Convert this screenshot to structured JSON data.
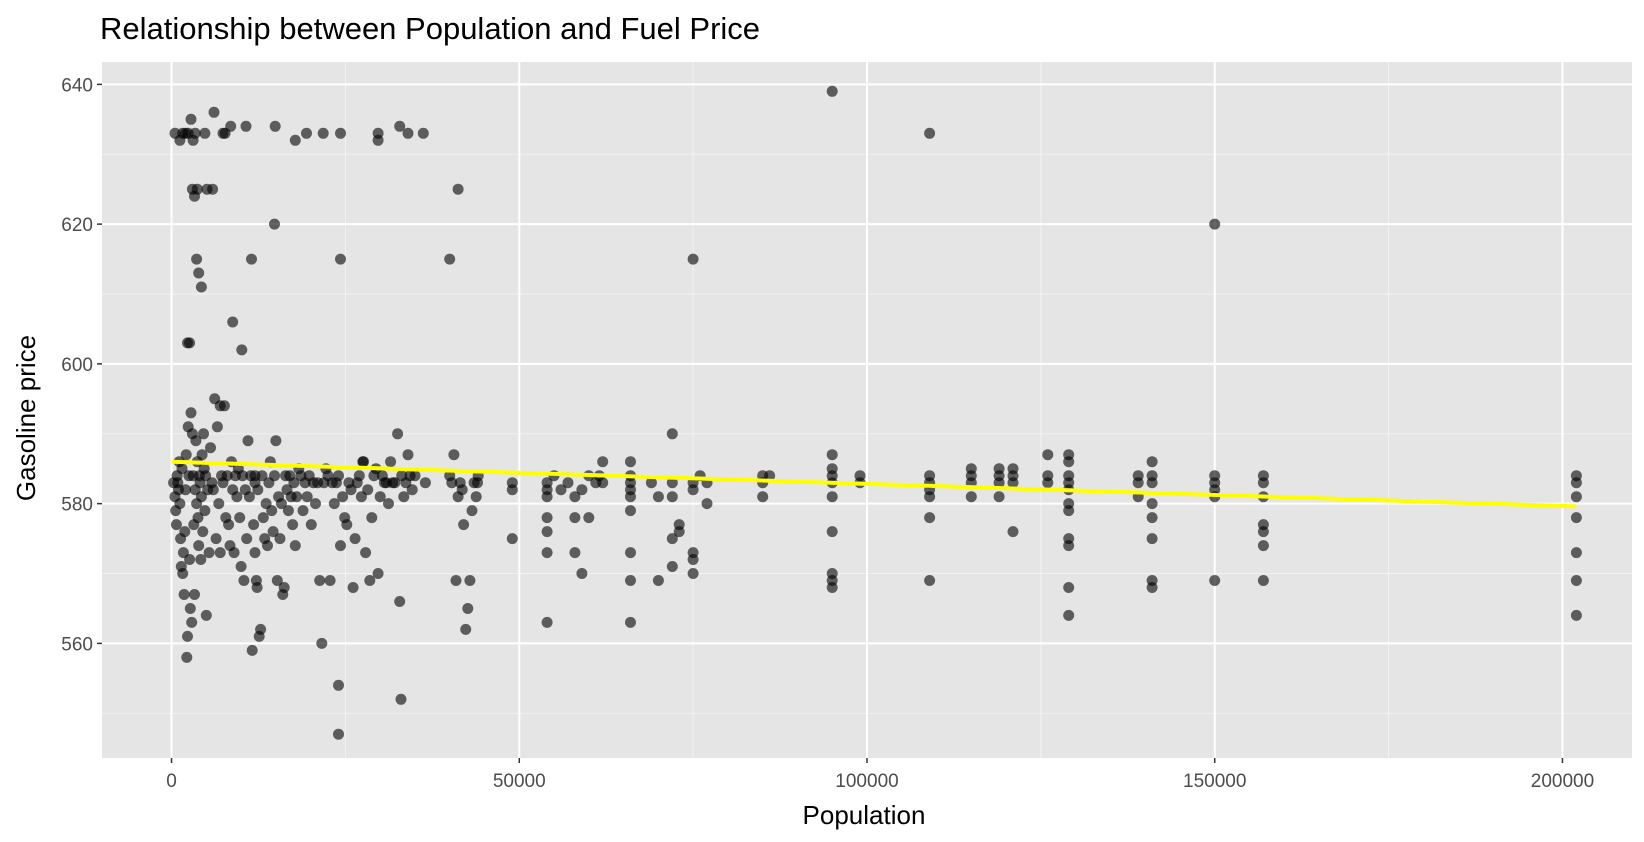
{
  "chart_data": {
    "type": "scatter",
    "title": "Relationship between Population and Fuel Price",
    "xlabel": "Population",
    "ylabel": "Gasoline price",
    "xlim": [
      -10000,
      210000
    ],
    "ylim": [
      543.6,
      643.2
    ],
    "x_ticks": [
      0,
      50000,
      100000,
      150000,
      200000
    ],
    "x_tick_labels": [
      "0",
      "50000",
      "100000",
      "150000",
      "200000"
    ],
    "y_ticks": [
      560,
      580,
      600,
      620,
      640
    ],
    "y_tick_labels": [
      "560",
      "580",
      "600",
      "620",
      "640"
    ],
    "grid": true,
    "legend": "none",
    "colors": {
      "panel_background": "#e5e5e5",
      "grid_major": "#ffffff",
      "grid_minor": "#f2f2f2",
      "points": "#000000",
      "trend_line": "#ffff00"
    },
    "point_opacity": 0.6,
    "trend_line": {
      "x": [
        0,
        202000
      ],
      "y": [
        586.0,
        579.6
      ]
    },
    "points": [
      [
        300,
        583
      ],
      [
        500,
        581
      ],
      [
        600,
        579
      ],
      [
        700,
        577
      ],
      [
        800,
        584
      ],
      [
        900,
        583
      ],
      [
        1000,
        582
      ],
      [
        1100,
        586
      ],
      [
        1200,
        580
      ],
      [
        1300,
        575
      ],
      [
        1400,
        571
      ],
      [
        1500,
        585
      ],
      [
        1600,
        570
      ],
      [
        1700,
        573
      ],
      [
        1800,
        567
      ],
      [
        1900,
        576
      ],
      [
        2000,
        582
      ],
      [
        2100,
        587
      ],
      [
        2200,
        558
      ],
      [
        2300,
        561
      ],
      [
        2400,
        591
      ],
      [
        2500,
        584
      ],
      [
        2600,
        572
      ],
      [
        2700,
        565
      ],
      [
        2800,
        593
      ],
      [
        2900,
        563
      ],
      [
        3000,
        590
      ],
      [
        3100,
        584
      ],
      [
        3200,
        577
      ],
      [
        3300,
        567
      ],
      [
        3400,
        582
      ],
      [
        3500,
        589
      ],
      [
        3600,
        580
      ],
      [
        3700,
        586
      ],
      [
        3800,
        578
      ],
      [
        3900,
        574
      ],
      [
        4000,
        584
      ],
      [
        4100,
        583
      ],
      [
        4200,
        572
      ],
      [
        4300,
        581
      ],
      [
        4400,
        587
      ],
      [
        4500,
        576
      ],
      [
        4600,
        590
      ],
      [
        4700,
        585
      ],
      [
        4800,
        579
      ],
      [
        4900,
        584
      ],
      [
        5000,
        564
      ],
      [
        5200,
        582
      ],
      [
        5400,
        573
      ],
      [
        5600,
        588
      ],
      [
        5800,
        583
      ],
      [
        6000,
        582
      ],
      [
        6200,
        595
      ],
      [
        6400,
        575
      ],
      [
        6600,
        591
      ],
      [
        6800,
        580
      ],
      [
        7000,
        573
      ],
      [
        7200,
        584
      ],
      [
        7400,
        583
      ],
      [
        7600,
        594
      ],
      [
        7800,
        578
      ],
      [
        8000,
        584
      ],
      [
        8200,
        577
      ],
      [
        8400,
        574
      ],
      [
        8600,
        586
      ],
      [
        8800,
        582
      ],
      [
        9000,
        573
      ],
      [
        9200,
        584
      ],
      [
        9400,
        581
      ],
      [
        9600,
        585
      ],
      [
        9800,
        578
      ],
      [
        10000,
        571
      ],
      [
        10200,
        584
      ],
      [
        10400,
        569
      ],
      [
        10600,
        582
      ],
      [
        10800,
        575
      ],
      [
        11000,
        589
      ],
      [
        11200,
        581
      ],
      [
        11400,
        584
      ],
      [
        11600,
        559
      ],
      [
        11800,
        577
      ],
      [
        12000,
        573
      ],
      [
        12200,
        569
      ],
      [
        12400,
        582
      ],
      [
        12600,
        561
      ],
      [
        12800,
        562
      ],
      [
        13000,
        584
      ],
      [
        13200,
        578
      ],
      [
        13400,
        575
      ],
      [
        13600,
        580
      ],
      [
        13800,
        574
      ],
      [
        14000,
        583
      ],
      [
        14200,
        586
      ],
      [
        14400,
        579
      ],
      [
        14600,
        576
      ],
      [
        14800,
        584
      ],
      [
        15000,
        589
      ],
      [
        15200,
        569
      ],
      [
        15400,
        581
      ],
      [
        15600,
        575
      ],
      [
        15800,
        580
      ],
      [
        16000,
        567
      ],
      [
        16200,
        568
      ],
      [
        16400,
        584
      ],
      [
        16600,
        582
      ],
      [
        16800,
        579
      ],
      [
        17000,
        584
      ],
      [
        17200,
        581
      ],
      [
        17400,
        577
      ],
      [
        17600,
        583
      ],
      [
        17800,
        574
      ],
      [
        18000,
        581
      ],
      [
        18300,
        585
      ],
      [
        18600,
        584
      ],
      [
        18900,
        579
      ],
      [
        19200,
        583
      ],
      [
        19500,
        581
      ],
      [
        19800,
        584
      ],
      [
        20100,
        577
      ],
      [
        20400,
        583
      ],
      [
        20700,
        580
      ],
      [
        21000,
        583
      ],
      [
        21300,
        569
      ],
      [
        21600,
        560
      ],
      [
        21900,
        583
      ],
      [
        22200,
        585
      ],
      [
        22500,
        584
      ],
      [
        22800,
        569
      ],
      [
        23100,
        583
      ],
      [
        23400,
        580
      ],
      [
        23700,
        583
      ],
      [
        24000,
        584
      ],
      [
        24300,
        574
      ],
      [
        24600,
        581
      ],
      [
        24900,
        578
      ],
      [
        25200,
        577
      ],
      [
        25500,
        583
      ],
      [
        25800,
        582
      ],
      [
        26100,
        568
      ],
      [
        26400,
        575
      ],
      [
        26700,
        583
      ],
      [
        27000,
        584
      ],
      [
        27300,
        581
      ],
      [
        27600,
        586
      ],
      [
        27900,
        573
      ],
      [
        28200,
        582
      ],
      [
        28500,
        569
      ],
      [
        28800,
        578
      ],
      [
        29100,
        584
      ],
      [
        29400,
        585
      ],
      [
        29700,
        570
      ],
      [
        30000,
        581
      ],
      [
        30300,
        584
      ],
      [
        30600,
        583
      ],
      [
        30900,
        583
      ],
      [
        31200,
        580
      ],
      [
        31500,
        586
      ],
      [
        31800,
        583
      ],
      [
        32100,
        583
      ],
      [
        32500,
        590
      ],
      [
        32800,
        566
      ],
      [
        33100,
        584
      ],
      [
        33400,
        581
      ],
      [
        33700,
        583
      ],
      [
        34000,
        587
      ],
      [
        34300,
        584
      ],
      [
        34600,
        582
      ],
      [
        35000,
        584
      ],
      [
        36500,
        583
      ],
      [
        40000,
        584
      ],
      [
        40300,
        583
      ],
      [
        40600,
        587
      ],
      [
        40900,
        569
      ],
      [
        41200,
        581
      ],
      [
        41500,
        583
      ],
      [
        41800,
        582
      ],
      [
        42000,
        577
      ],
      [
        42300,
        562
      ],
      [
        42600,
        565
      ],
      [
        42900,
        569
      ],
      [
        43200,
        579
      ],
      [
        43500,
        583
      ],
      [
        43800,
        581
      ],
      [
        44100,
        584
      ],
      [
        44000,
        583
      ],
      [
        49000,
        583
      ],
      [
        49000,
        582
      ],
      [
        49000,
        575
      ],
      [
        54000,
        583
      ],
      [
        54000,
        582
      ],
      [
        54000,
        581
      ],
      [
        54000,
        578
      ],
      [
        54000,
        576
      ],
      [
        54000,
        573
      ],
      [
        54000,
        563
      ],
      [
        55000,
        584
      ],
      [
        56000,
        582
      ],
      [
        57000,
        583
      ],
      [
        58000,
        581
      ],
      [
        59000,
        582
      ],
      [
        60000,
        584
      ],
      [
        61000,
        583
      ],
      [
        61500,
        584
      ],
      [
        62000,
        586
      ],
      [
        62000,
        583
      ],
      [
        58000,
        573
      ],
      [
        58000,
        578
      ],
      [
        59000,
        570
      ],
      [
        60000,
        578
      ],
      [
        66000,
        583
      ],
      [
        66000,
        584
      ],
      [
        66000,
        586
      ],
      [
        66000,
        582
      ],
      [
        66000,
        581
      ],
      [
        66000,
        579
      ],
      [
        66000,
        573
      ],
      [
        66000,
        569
      ],
      [
        66000,
        563
      ],
      [
        69000,
        583
      ],
      [
        70000,
        581
      ],
      [
        70000,
        569
      ],
      [
        72000,
        590
      ],
      [
        72000,
        583
      ],
      [
        72000,
        581
      ],
      [
        72000,
        575
      ],
      [
        72000,
        571
      ],
      [
        73000,
        577
      ],
      [
        73000,
        576
      ],
      [
        75000,
        583
      ],
      [
        75000,
        582
      ],
      [
        75000,
        573
      ],
      [
        75000,
        572
      ],
      [
        75000,
        570
      ],
      [
        76000,
        584
      ],
      [
        77000,
        583
      ],
      [
        77000,
        580
      ],
      [
        85000,
        584
      ],
      [
        85000,
        583
      ],
      [
        85000,
        581
      ],
      [
        86000,
        584
      ],
      [
        95000,
        587
      ],
      [
        95000,
        585
      ],
      [
        95000,
        584
      ],
      [
        95000,
        583
      ],
      [
        95000,
        581
      ],
      [
        95000,
        576
      ],
      [
        95000,
        570
      ],
      [
        95000,
        569
      ],
      [
        95000,
        568
      ],
      [
        99000,
        584
      ],
      [
        99000,
        583
      ],
      [
        109000,
        584
      ],
      [
        109000,
        583
      ],
      [
        109000,
        582
      ],
      [
        109000,
        581
      ],
      [
        109000,
        578
      ],
      [
        109000,
        569
      ],
      [
        115000,
        585
      ],
      [
        115000,
        584
      ],
      [
        115000,
        583
      ],
      [
        115000,
        581
      ],
      [
        119000,
        585
      ],
      [
        119000,
        584
      ],
      [
        119000,
        583
      ],
      [
        119000,
        581
      ],
      [
        121000,
        585
      ],
      [
        121000,
        584
      ],
      [
        121000,
        583
      ],
      [
        121000,
        576
      ],
      [
        126000,
        587
      ],
      [
        126000,
        584
      ],
      [
        126000,
        583
      ],
      [
        129000,
        587
      ],
      [
        129000,
        586
      ],
      [
        129000,
        584
      ],
      [
        129000,
        583
      ],
      [
        129000,
        582
      ],
      [
        129000,
        580
      ],
      [
        129000,
        579
      ],
      [
        129000,
        575
      ],
      [
        129000,
        574
      ],
      [
        129000,
        568
      ],
      [
        129000,
        564
      ],
      [
        139000,
        584
      ],
      [
        139000,
        583
      ],
      [
        139000,
        581
      ],
      [
        141000,
        586
      ],
      [
        141000,
        584
      ],
      [
        141000,
        583
      ],
      [
        141000,
        580
      ],
      [
        141000,
        578
      ],
      [
        141000,
        575
      ],
      [
        141000,
        569
      ],
      [
        141000,
        568
      ],
      [
        150000,
        584
      ],
      [
        150000,
        583
      ],
      [
        150000,
        582
      ],
      [
        150000,
        581
      ],
      [
        150000,
        569
      ],
      [
        157000,
        584
      ],
      [
        157000,
        583
      ],
      [
        157000,
        581
      ],
      [
        157000,
        577
      ],
      [
        157000,
        576
      ],
      [
        157000,
        574
      ],
      [
        157000,
        569
      ],
      [
        202000,
        584
      ],
      [
        202000,
        583
      ],
      [
        202000,
        581
      ],
      [
        202000,
        578
      ],
      [
        202000,
        573
      ],
      [
        202000,
        569
      ],
      [
        202000,
        564
      ],
      [
        500,
        633
      ],
      [
        1200,
        632
      ],
      [
        1600,
        633
      ],
      [
        2000,
        633
      ],
      [
        2400,
        633
      ],
      [
        2800,
        635
      ],
      [
        3000,
        625
      ],
      [
        3100,
        632
      ],
      [
        3300,
        624
      ],
      [
        3400,
        633
      ],
      [
        3600,
        615
      ],
      [
        3700,
        625
      ],
      [
        3900,
        613
      ],
      [
        4300,
        611
      ],
      [
        4800,
        633
      ],
      [
        5100,
        625
      ],
      [
        5900,
        625
      ],
      [
        6100,
        636
      ],
      [
        7400,
        633
      ],
      [
        7700,
        633
      ],
      [
        8500,
        634
      ],
      [
        8800,
        606
      ],
      [
        10100,
        602
      ],
      [
        10700,
        634
      ],
      [
        11500,
        615
      ],
      [
        14800,
        620
      ],
      [
        14900,
        634
      ],
      [
        17800,
        632
      ],
      [
        19400,
        633
      ],
      [
        21800,
        633
      ],
      [
        24300,
        615
      ],
      [
        24300,
        633
      ],
      [
        29700,
        633
      ],
      [
        29700,
        632
      ],
      [
        32800,
        634
      ],
      [
        34000,
        633
      ],
      [
        36200,
        633
      ],
      [
        40000,
        615
      ],
      [
        41200,
        625
      ],
      [
        75000,
        615
      ],
      [
        95000,
        639
      ],
      [
        109000,
        633
      ],
      [
        150000,
        620
      ],
      [
        2300,
        603
      ],
      [
        2600,
        603
      ],
      [
        7000,
        594
      ],
      [
        24000,
        554
      ],
      [
        24000,
        547
      ],
      [
        33000,
        552
      ],
      [
        12000,
        584
      ],
      [
        12000,
        583
      ],
      [
        12300,
        568
      ],
      [
        27500,
        586
      ]
    ]
  }
}
